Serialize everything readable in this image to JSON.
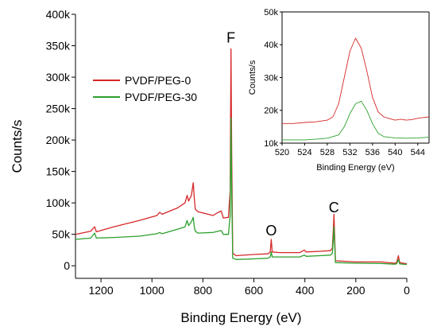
{
  "chart_data": [
    {
      "type": "line",
      "xlabel": "Binding Energy (eV)",
      "ylabel": "Counts/s",
      "xlim": [
        1300,
        0
      ],
      "ylim": [
        -20000,
        400000
      ],
      "x_ticks": [
        1200,
        1000,
        800,
        600,
        400,
        200,
        0
      ],
      "x_tick_labels": [
        "1200",
        "1000",
        "800",
        "600",
        "400",
        "200",
        "0"
      ],
      "y_ticks": [
        0,
        50000,
        100000,
        150000,
        200000,
        250000,
        300000,
        350000,
        400000
      ],
      "y_tick_labels": [
        "0",
        "50k",
        "100k",
        "150k",
        "200k",
        "250k",
        "300k",
        "350k",
        "400k"
      ],
      "grid": false,
      "legend_placement": "upper-left",
      "annotations": [
        {
          "text": "F",
          "x": 690,
          "y": 355000
        },
        {
          "text": "O",
          "x": 532,
          "y": 48000
        },
        {
          "text": "C",
          "x": 286,
          "y": 85000
        }
      ],
      "series": [
        {
          "name": "PVDF/PEG-0",
          "color": "#d62728",
          "points": [
            [
              1300,
              50000
            ],
            [
              1240,
              55000
            ],
            [
              1225,
              62000
            ],
            [
              1218,
              54000
            ],
            [
              1150,
              62000
            ],
            [
              1050,
              72000
            ],
            [
              980,
              80000
            ],
            [
              970,
              85000
            ],
            [
              960,
              82000
            ],
            [
              900,
              92000
            ],
            [
              870,
              100000
            ],
            [
              862,
              112000
            ],
            [
              856,
              103000
            ],
            [
              845,
              112000
            ],
            [
              838,
              132000
            ],
            [
              834,
              108000
            ],
            [
              830,
              90000
            ],
            [
              820,
              86000
            ],
            [
              760,
              80000
            ],
            [
              740,
              85000
            ],
            [
              728,
              87000
            ],
            [
              720,
              76000
            ],
            [
              700,
              77000
            ],
            [
              693,
              120000
            ],
            [
              690,
              345000
            ],
            [
              687,
              180000
            ],
            [
              683,
              20000
            ],
            [
              670,
              16000
            ],
            [
              600,
              18000
            ],
            [
              545,
              19000
            ],
            [
              536,
              22000
            ],
            [
              532,
              42000
            ],
            [
              528,
              22000
            ],
            [
              500,
              21000
            ],
            [
              420,
              21000
            ],
            [
              402,
              25000
            ],
            [
              395,
              22000
            ],
            [
              340,
              23000
            ],
            [
              300,
              24000
            ],
            [
              292,
              28000
            ],
            [
              288,
              60000
            ],
            [
              286,
              82000
            ],
            [
              284,
              58000
            ],
            [
              280,
              8000
            ],
            [
              200,
              6000
            ],
            [
              100,
              6000
            ],
            [
              50,
              4000
            ],
            [
              40,
              5000
            ],
            [
              33,
              16000
            ],
            [
              28,
              5000
            ],
            [
              0,
              3000
            ]
          ]
        },
        {
          "name": "PVDF/PEG-30",
          "color": "#2ca02c",
          "points": [
            [
              1300,
              42000
            ],
            [
              1240,
              44000
            ],
            [
              1225,
              52000
            ],
            [
              1218,
              44000
            ],
            [
              1150,
              45000
            ],
            [
              1050,
              47000
            ],
            [
              980,
              51000
            ],
            [
              970,
              53000
            ],
            [
              960,
              51000
            ],
            [
              900,
              58000
            ],
            [
              870,
              62000
            ],
            [
              862,
              72000
            ],
            [
              856,
              64000
            ],
            [
              845,
              70000
            ],
            [
              838,
              77000
            ],
            [
              834,
              62000
            ],
            [
              830,
              55000
            ],
            [
              820,
              52000
            ],
            [
              760,
              53000
            ],
            [
              740,
              55000
            ],
            [
              728,
              56000
            ],
            [
              720,
              50000
            ],
            [
              700,
              50000
            ],
            [
              693,
              80000
            ],
            [
              690,
              235000
            ],
            [
              687,
              120000
            ],
            [
              683,
              12000
            ],
            [
              670,
              10000
            ],
            [
              600,
              11000
            ],
            [
              545,
              12000
            ],
            [
              536,
              14000
            ],
            [
              532,
              22000
            ],
            [
              528,
              14000
            ],
            [
              500,
              14000
            ],
            [
              420,
              14000
            ],
            [
              402,
              17000
            ],
            [
              395,
              15000
            ],
            [
              340,
              16000
            ],
            [
              300,
              17000
            ],
            [
              292,
              20000
            ],
            [
              288,
              45000
            ],
            [
              286,
              62000
            ],
            [
              284,
              42000
            ],
            [
              280,
              5000
            ],
            [
              200,
              4000
            ],
            [
              100,
              3500
            ],
            [
              50,
              2500
            ],
            [
              40,
              3000
            ],
            [
              33,
              10000
            ],
            [
              28,
              3000
            ],
            [
              0,
              2000
            ]
          ]
        }
      ]
    },
    {
      "type": "line",
      "xlabel": "Binding Energy (eV)",
      "ylabel": "Counts/s",
      "xlim": [
        520,
        546
      ],
      "ylim": [
        10000,
        50000
      ],
      "x_ticks": [
        520,
        524,
        528,
        532,
        536,
        540,
        544
      ],
      "x_tick_labels": [
        "520",
        "524",
        "528",
        "532",
        "536",
        "540",
        "544"
      ],
      "y_ticks": [
        10000,
        20000,
        30000,
        40000,
        50000
      ],
      "y_tick_labels": [
        "10k",
        "20k",
        "30k",
        "40k",
        "50k"
      ],
      "grid": false,
      "series": [
        {
          "name": "PVDF/PEG-0",
          "color": "#d62728",
          "points": [
            [
              520,
              16000
            ],
            [
              522,
              16000
            ],
            [
              524,
              16300
            ],
            [
              526,
              16500
            ],
            [
              528,
              17000
            ],
            [
              529,
              18000
            ],
            [
              530,
              22000
            ],
            [
              531,
              30000
            ],
            [
              532,
              38000
            ],
            [
              533,
              42000
            ],
            [
              534,
              39000
            ],
            [
              535,
              32000
            ],
            [
              536,
              24000
            ],
            [
              537,
              19500
            ],
            [
              538,
              18000
            ],
            [
              539,
              17500
            ],
            [
              540,
              17000
            ],
            [
              541,
              17300
            ],
            [
              542,
              17000
            ],
            [
              543,
              17200
            ],
            [
              544,
              17600
            ],
            [
              545,
              17800
            ],
            [
              546,
              18000
            ]
          ]
        },
        {
          "name": "PVDF/PEG-30",
          "color": "#2ca02c",
          "points": [
            [
              520,
              11000
            ],
            [
              522,
              11000
            ],
            [
              524,
              11000
            ],
            [
              526,
              11200
            ],
            [
              528,
              11500
            ],
            [
              530,
              12500
            ],
            [
              531,
              15000
            ],
            [
              532,
              19000
            ],
            [
              533,
              22000
            ],
            [
              534,
              22800
            ],
            [
              535,
              20000
            ],
            [
              536,
              16000
            ],
            [
              537,
              13000
            ],
            [
              538,
              12000
            ],
            [
              540,
              11600
            ],
            [
              542,
              11500
            ],
            [
              544,
              11600
            ],
            [
              546,
              11800
            ]
          ]
        }
      ]
    }
  ]
}
